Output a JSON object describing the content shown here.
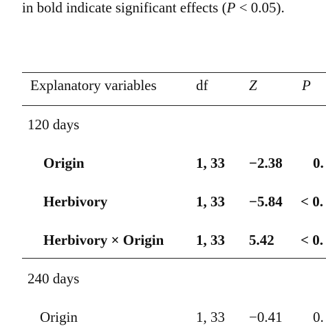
{
  "caption": {
    "prefix": "in bold indicate significant effects (",
    "p_symbol": "P",
    "suffix": " < 0.05)."
  },
  "table": {
    "headers": {
      "variable": "Explanatory variables",
      "df": "df",
      "z": "Z",
      "p": "P"
    },
    "groups": [
      {
        "label": "120 days",
        "rows": [
          {
            "variable": "Origin",
            "df": "1, 33",
            "z": "−2.38",
            "p": "0.",
            "bold": true
          },
          {
            "variable": "Herbivory",
            "df": "1, 33",
            "z": "−5.84",
            "p": "< 0.",
            "bold": true
          },
          {
            "variable": "Herbivory × Origin",
            "df": "1, 33",
            "z": "5.42",
            "p": "< 0.",
            "bold": true
          }
        ]
      },
      {
        "label": "240 days",
        "rows": [
          {
            "variable": "Origin",
            "df": "1, 33",
            "z": "−0.41",
            "p": "0.",
            "bold": false
          }
        ]
      }
    ]
  }
}
